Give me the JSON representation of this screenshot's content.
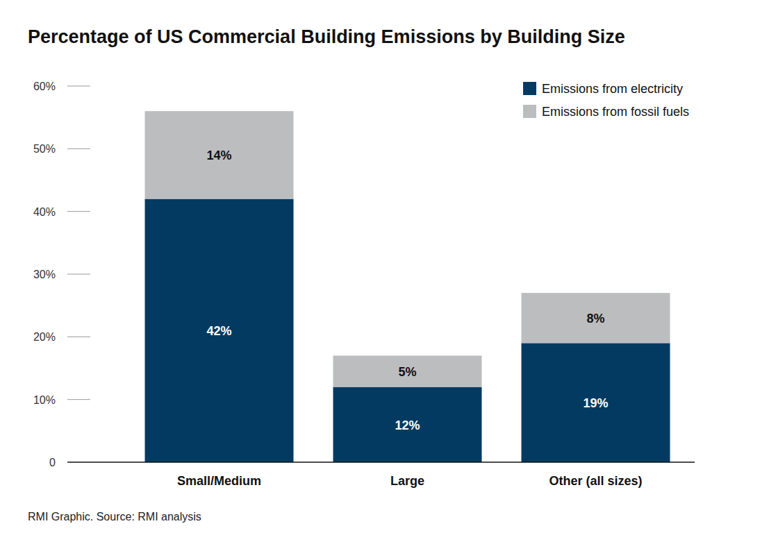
{
  "chart_data": {
    "type": "bar",
    "title": "Percentage of US Commercial Building Emissions by Building Size",
    "source": "RMI Graphic. Source: RMI analysis",
    "categories": [
      "Small/Medium",
      "Large",
      "Other (all sizes)"
    ],
    "series": [
      {
        "name": "Emissions from electricity",
        "color": "#033a62",
        "values": [
          42,
          12,
          19
        ],
        "value_labels": [
          "42%",
          "12%",
          "19%"
        ]
      },
      {
        "name": "Emissions from fossil fuels",
        "color": "#bcbdbf",
        "values": [
          14,
          5,
          8
        ],
        "value_labels": [
          "14%",
          "5%",
          "8%"
        ]
      }
    ],
    "ylim": [
      0,
      60
    ],
    "yticks": [
      0,
      {
        "value": 10,
        "label": "10%"
      },
      {
        "value": 20,
        "label": "20%"
      },
      {
        "value": 30,
        "label": "30%"
      },
      {
        "value": 40,
        "label": "40%"
      },
      {
        "value": 50,
        "label": "50%"
      },
      {
        "value": 60,
        "label": "60%"
      }
    ],
    "stacked": true,
    "data_labels": true,
    "legend": "top-right",
    "grid": false
  }
}
